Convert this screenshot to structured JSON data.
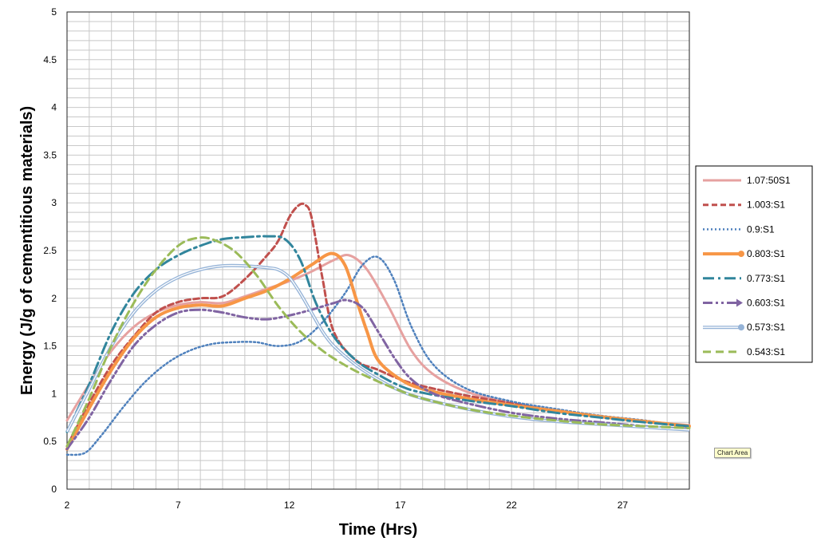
{
  "tooltip": "Chart Area",
  "chart_data": {
    "type": "line",
    "title": "",
    "xlabel": "Time (Hrs)",
    "ylabel": "Energy (J/g of cementitious materials)",
    "xlim": [
      2,
      30
    ],
    "ylim": [
      0,
      5
    ],
    "xticks": [
      2,
      7,
      12,
      17,
      22,
      27
    ],
    "yticks": [
      0,
      0.5,
      1,
      1.5,
      2,
      2.5,
      3,
      3.5,
      4,
      4.5,
      5
    ],
    "grid": true,
    "legend_position": "right",
    "series": [
      {
        "name": "1.07:50S1",
        "color": "#e6a1a0",
        "style": "solid",
        "x": [
          2,
          3,
          4,
          5,
          6,
          7,
          8,
          9,
          10,
          11,
          12,
          13,
          14,
          14.7,
          15.5,
          16.5,
          17.5,
          18.5,
          20,
          22,
          24,
          26,
          28,
          30
        ],
        "y": [
          0.72,
          1.1,
          1.45,
          1.7,
          1.85,
          1.93,
          1.96,
          1.95,
          2.02,
          2.1,
          2.18,
          2.28,
          2.4,
          2.45,
          2.3,
          1.9,
          1.45,
          1.2,
          1.02,
          0.9,
          0.82,
          0.76,
          0.71,
          0.67
        ]
      },
      {
        "name": "1.003:S1",
        "color": "#c0504d",
        "style": "dashed",
        "x": [
          2,
          3,
          4,
          5,
          6,
          7,
          8,
          9,
          10,
          11,
          11.5,
          12,
          12.4,
          12.7,
          13,
          13.5,
          14,
          15,
          16,
          17,
          18,
          20,
          22,
          24,
          26,
          28,
          30
        ],
        "y": [
          0.45,
          0.9,
          1.3,
          1.6,
          1.85,
          1.96,
          2.0,
          2.02,
          2.2,
          2.45,
          2.6,
          2.85,
          2.97,
          2.98,
          2.85,
          2.2,
          1.65,
          1.35,
          1.25,
          1.15,
          1.08,
          0.98,
          0.9,
          0.82,
          0.76,
          0.71,
          0.66
        ]
      },
      {
        "name": "0.9:S1",
        "color": "#4f81bd",
        "style": "dotted",
        "x": [
          2,
          2.8,
          3.5,
          4.5,
          5.5,
          6.5,
          7.5,
          8.5,
          9.5,
          10.5,
          11.5,
          12.5,
          13.5,
          14.5,
          15.3,
          16,
          16.7,
          17.5,
          18.5,
          20,
          22,
          24,
          26,
          28,
          30
        ],
        "y": [
          0.36,
          0.38,
          0.55,
          0.85,
          1.12,
          1.32,
          1.45,
          1.52,
          1.54,
          1.54,
          1.5,
          1.55,
          1.75,
          2.05,
          2.35,
          2.43,
          2.2,
          1.7,
          1.3,
          1.05,
          0.92,
          0.84,
          0.77,
          0.72,
          0.65
        ]
      },
      {
        "name": "0.803:S1",
        "color": "#f79646",
        "style": "thick",
        "x": [
          2,
          3,
          4,
          5,
          6,
          7,
          8,
          9,
          10,
          11,
          12,
          13,
          13.9,
          14.5,
          15,
          15.5,
          16,
          17,
          18,
          20,
          22,
          24,
          26,
          28,
          30
        ],
        "y": [
          0.42,
          0.85,
          1.25,
          1.58,
          1.8,
          1.9,
          1.93,
          1.92,
          2.0,
          2.08,
          2.2,
          2.35,
          2.47,
          2.35,
          2.0,
          1.65,
          1.35,
          1.15,
          1.05,
          0.95,
          0.88,
          0.82,
          0.76,
          0.71,
          0.66
        ]
      },
      {
        "name": "0.773:S1",
        "color": "#31859c",
        "style": "dashdot",
        "x": [
          2,
          3,
          4,
          5,
          6,
          7,
          8,
          9,
          10,
          11,
          11.8,
          12.5,
          13.2,
          14,
          15,
          16,
          17,
          18,
          20,
          22,
          24,
          26,
          28,
          30
        ],
        "y": [
          0.6,
          1.1,
          1.65,
          2.05,
          2.3,
          2.45,
          2.55,
          2.62,
          2.64,
          2.65,
          2.62,
          2.4,
          1.95,
          1.6,
          1.35,
          1.2,
          1.08,
          1.01,
          0.93,
          0.87,
          0.8,
          0.75,
          0.7,
          0.66
        ]
      },
      {
        "name": "0.603:S1",
        "color": "#8064a2",
        "style": "dashdotdot",
        "x": [
          2,
          3,
          4,
          5,
          6,
          7,
          8,
          9,
          10,
          11,
          12,
          13,
          14,
          14.6,
          15.3,
          16,
          16.8,
          17.5,
          18.5,
          20,
          22,
          24,
          26,
          28,
          30
        ],
        "y": [
          0.42,
          0.75,
          1.15,
          1.5,
          1.72,
          1.85,
          1.88,
          1.85,
          1.8,
          1.78,
          1.82,
          1.88,
          1.95,
          1.98,
          1.9,
          1.65,
          1.35,
          1.15,
          1.0,
          0.9,
          0.8,
          0.74,
          0.7,
          0.66,
          0.63
        ]
      },
      {
        "name": "0.573:S1",
        "color": "#95b3d7",
        "style": "double",
        "x": [
          2,
          3,
          4,
          5,
          6,
          7,
          8,
          9,
          10,
          11,
          11.5,
          12,
          12.5,
          13,
          13.5,
          14,
          15,
          16,
          17,
          18,
          20,
          22,
          24,
          26,
          28,
          30
        ],
        "y": [
          0.6,
          1.05,
          1.5,
          1.85,
          2.08,
          2.22,
          2.3,
          2.34,
          2.34,
          2.32,
          2.3,
          2.22,
          2.05,
          1.85,
          1.65,
          1.5,
          1.3,
          1.15,
          1.03,
          0.95,
          0.84,
          0.76,
          0.71,
          0.68,
          0.65,
          0.62
        ]
      },
      {
        "name": "0.543:S1",
        "color": "#9bbb59",
        "style": "longdash",
        "x": [
          2,
          3,
          4,
          5,
          6,
          7,
          7.8,
          8.5,
          9.5,
          10.5,
          11.5,
          12.5,
          13.5,
          14.5,
          15.5,
          17,
          18,
          20,
          22,
          24,
          26,
          28,
          30
        ],
        "y": [
          0.45,
          0.95,
          1.5,
          1.95,
          2.3,
          2.55,
          2.63,
          2.62,
          2.5,
          2.25,
          1.92,
          1.65,
          1.45,
          1.3,
          1.18,
          1.03,
          0.95,
          0.84,
          0.77,
          0.72,
          0.68,
          0.66,
          0.64
        ]
      }
    ]
  }
}
